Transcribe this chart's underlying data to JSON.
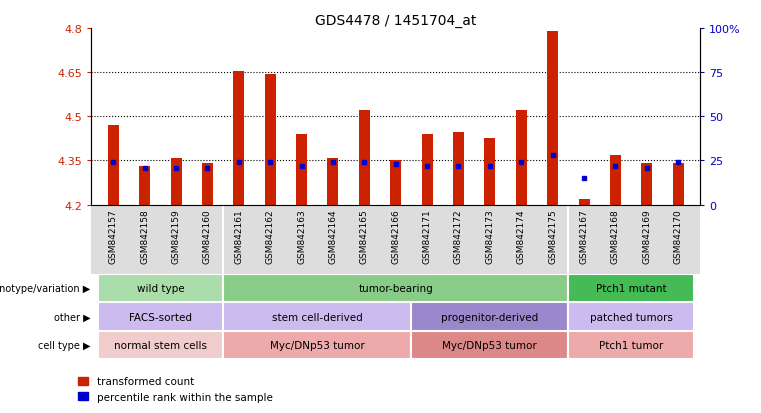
{
  "title": "GDS4478 / 1451704_at",
  "samples": [
    "GSM842157",
    "GSM842158",
    "GSM842159",
    "GSM842160",
    "GSM842161",
    "GSM842162",
    "GSM842163",
    "GSM842164",
    "GSM842165",
    "GSM842166",
    "GSM842171",
    "GSM842172",
    "GSM842173",
    "GSM842174",
    "GSM842175",
    "GSM842167",
    "GSM842168",
    "GSM842169",
    "GSM842170"
  ],
  "red_values": [
    4.47,
    4.33,
    4.36,
    4.34,
    4.655,
    4.645,
    4.44,
    4.36,
    4.52,
    4.35,
    4.44,
    4.445,
    4.425,
    4.52,
    4.79,
    4.22,
    4.37,
    4.34,
    4.34
  ],
  "blue_values": [
    24,
    21,
    21,
    21,
    24,
    24,
    22,
    24,
    24,
    23,
    22,
    22,
    22,
    24,
    28,
    15,
    22,
    21,
    24
  ],
  "ylim_left": [
    4.2,
    4.8
  ],
  "ylim_right": [
    0,
    100
  ],
  "yticks_left": [
    4.2,
    4.35,
    4.5,
    4.65,
    4.8
  ],
  "yticks_right": [
    0,
    25,
    50,
    75,
    100
  ],
  "ytick_labels_left": [
    "4.2",
    "4.35",
    "4.5",
    "4.65",
    "4.8"
  ],
  "ytick_labels_right": [
    "0",
    "25",
    "50",
    "75",
    "100%"
  ],
  "grid_lines": [
    4.35,
    4.5,
    4.65
  ],
  "bar_width": 0.35,
  "red_color": "#cc2200",
  "blue_color": "#0000cc",
  "genotype_groups": [
    {
      "label": "wild type",
      "start": 0,
      "end": 4,
      "color": "#aaddaa"
    },
    {
      "label": "tumor-bearing",
      "start": 4,
      "end": 15,
      "color": "#88cc88"
    },
    {
      "label": "Ptch1 mutant",
      "start": 15,
      "end": 19,
      "color": "#44bb55"
    }
  ],
  "other_groups": [
    {
      "label": "FACS-sorted",
      "start": 0,
      "end": 4,
      "color": "#ccbbee"
    },
    {
      "label": "stem cell-derived",
      "start": 4,
      "end": 10,
      "color": "#ccbbee"
    },
    {
      "label": "progenitor-derived",
      "start": 10,
      "end": 15,
      "color": "#9988cc"
    },
    {
      "label": "patched tumors",
      "start": 15,
      "end": 19,
      "color": "#ccbbee"
    }
  ],
  "celltype_groups": [
    {
      "label": "normal stem cells",
      "start": 0,
      "end": 4,
      "color": "#f0cccc"
    },
    {
      "label": "Myc/DNp53 tumor",
      "start": 4,
      "end": 10,
      "color": "#eeaaaa"
    },
    {
      "label": "Myc/DNp53 tumor",
      "start": 10,
      "end": 15,
      "color": "#dd8888"
    },
    {
      "label": "Ptch1 tumor",
      "start": 15,
      "end": 19,
      "color": "#eeaaaa"
    }
  ],
  "legend_items": [
    {
      "label": "transformed count",
      "color": "#cc2200"
    },
    {
      "label": "percentile rank within the sample",
      "color": "#0000cc"
    }
  ],
  "row_labels": [
    "genotype/variation",
    "other",
    "cell type"
  ],
  "background_color": "#ffffff",
  "left_axis_color": "#cc2200",
  "right_axis_color": "#0000cc",
  "xticklabel_bg": "#dddddd",
  "chart_bg": "#ffffff"
}
